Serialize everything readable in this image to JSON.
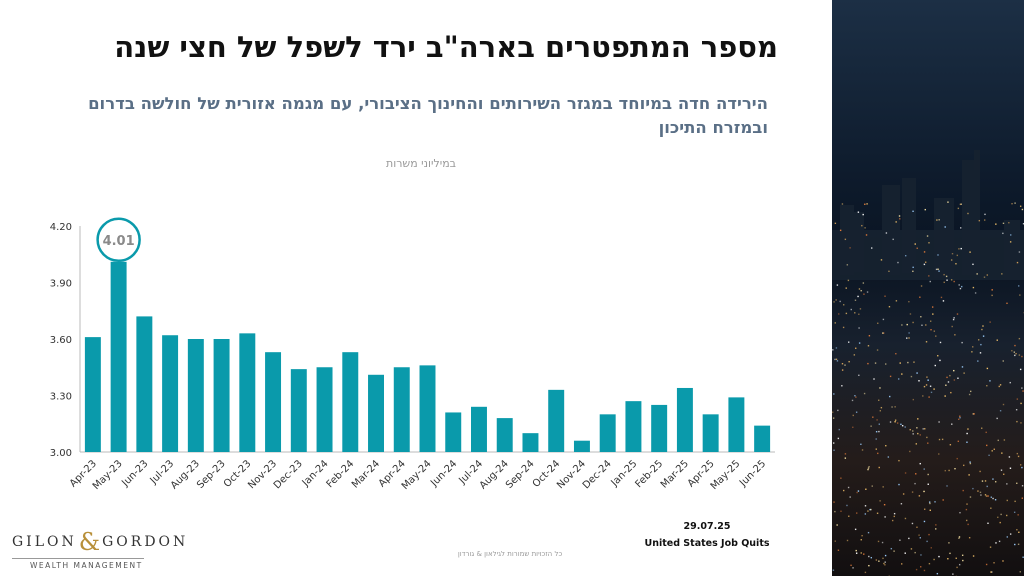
{
  "header": {
    "title": "מספר המתפטרים בארה\"ב ירד לשפל של חצי שנה",
    "subtitle": "הירידה חדה במיוחד במגזר השירותים והחינוך הציבורי, עם מגמה אזורית של חולשה בדרום ובמזרח התיכון"
  },
  "chart_data": {
    "type": "bar",
    "unit_label": "במיליוני משרות",
    "categories": [
      "Apr-23",
      "May-23",
      "Jun-23",
      "Jul-23",
      "Aug-23",
      "Sep-23",
      "Oct-23",
      "Nov-23",
      "Dec-23",
      "Jan-24",
      "Feb-24",
      "Mar-24",
      "Apr-24",
      "May-24",
      "Jun-24",
      "Jul-24",
      "Aug-24",
      "Sep-24",
      "Oct-24",
      "Nov-24",
      "Dec-24",
      "Jan-25",
      "Feb-25",
      "Mar-25",
      "Apr-25",
      "May-25",
      "Jun-25"
    ],
    "values": [
      3.61,
      4.01,
      3.72,
      3.62,
      3.6,
      3.6,
      3.63,
      3.53,
      3.44,
      3.45,
      3.53,
      3.41,
      3.45,
      3.46,
      3.21,
      3.24,
      3.18,
      3.1,
      3.33,
      3.06,
      3.2,
      3.27,
      3.25,
      3.34,
      3.2,
      3.29,
      3.14
    ],
    "ylim": [
      3.0,
      4.2
    ],
    "yticks": [
      "3.00",
      "3.30",
      "3.60",
      "3.90",
      "4.20"
    ],
    "highlight": {
      "index": 1,
      "label": "4.01"
    },
    "bar_color": "#0a9aab",
    "highlight_color": "#0a9aab",
    "grid": false
  },
  "footer": {
    "logo_left": "GILON",
    "logo_amp": "&",
    "logo_right": "GORDON",
    "logo_sub": "WEALTH MANAGEMENT",
    "copyright": "כל הזכויות שמורות לגילאון & גורדון",
    "date": "29.07.25",
    "source": "United States Job Quits"
  }
}
